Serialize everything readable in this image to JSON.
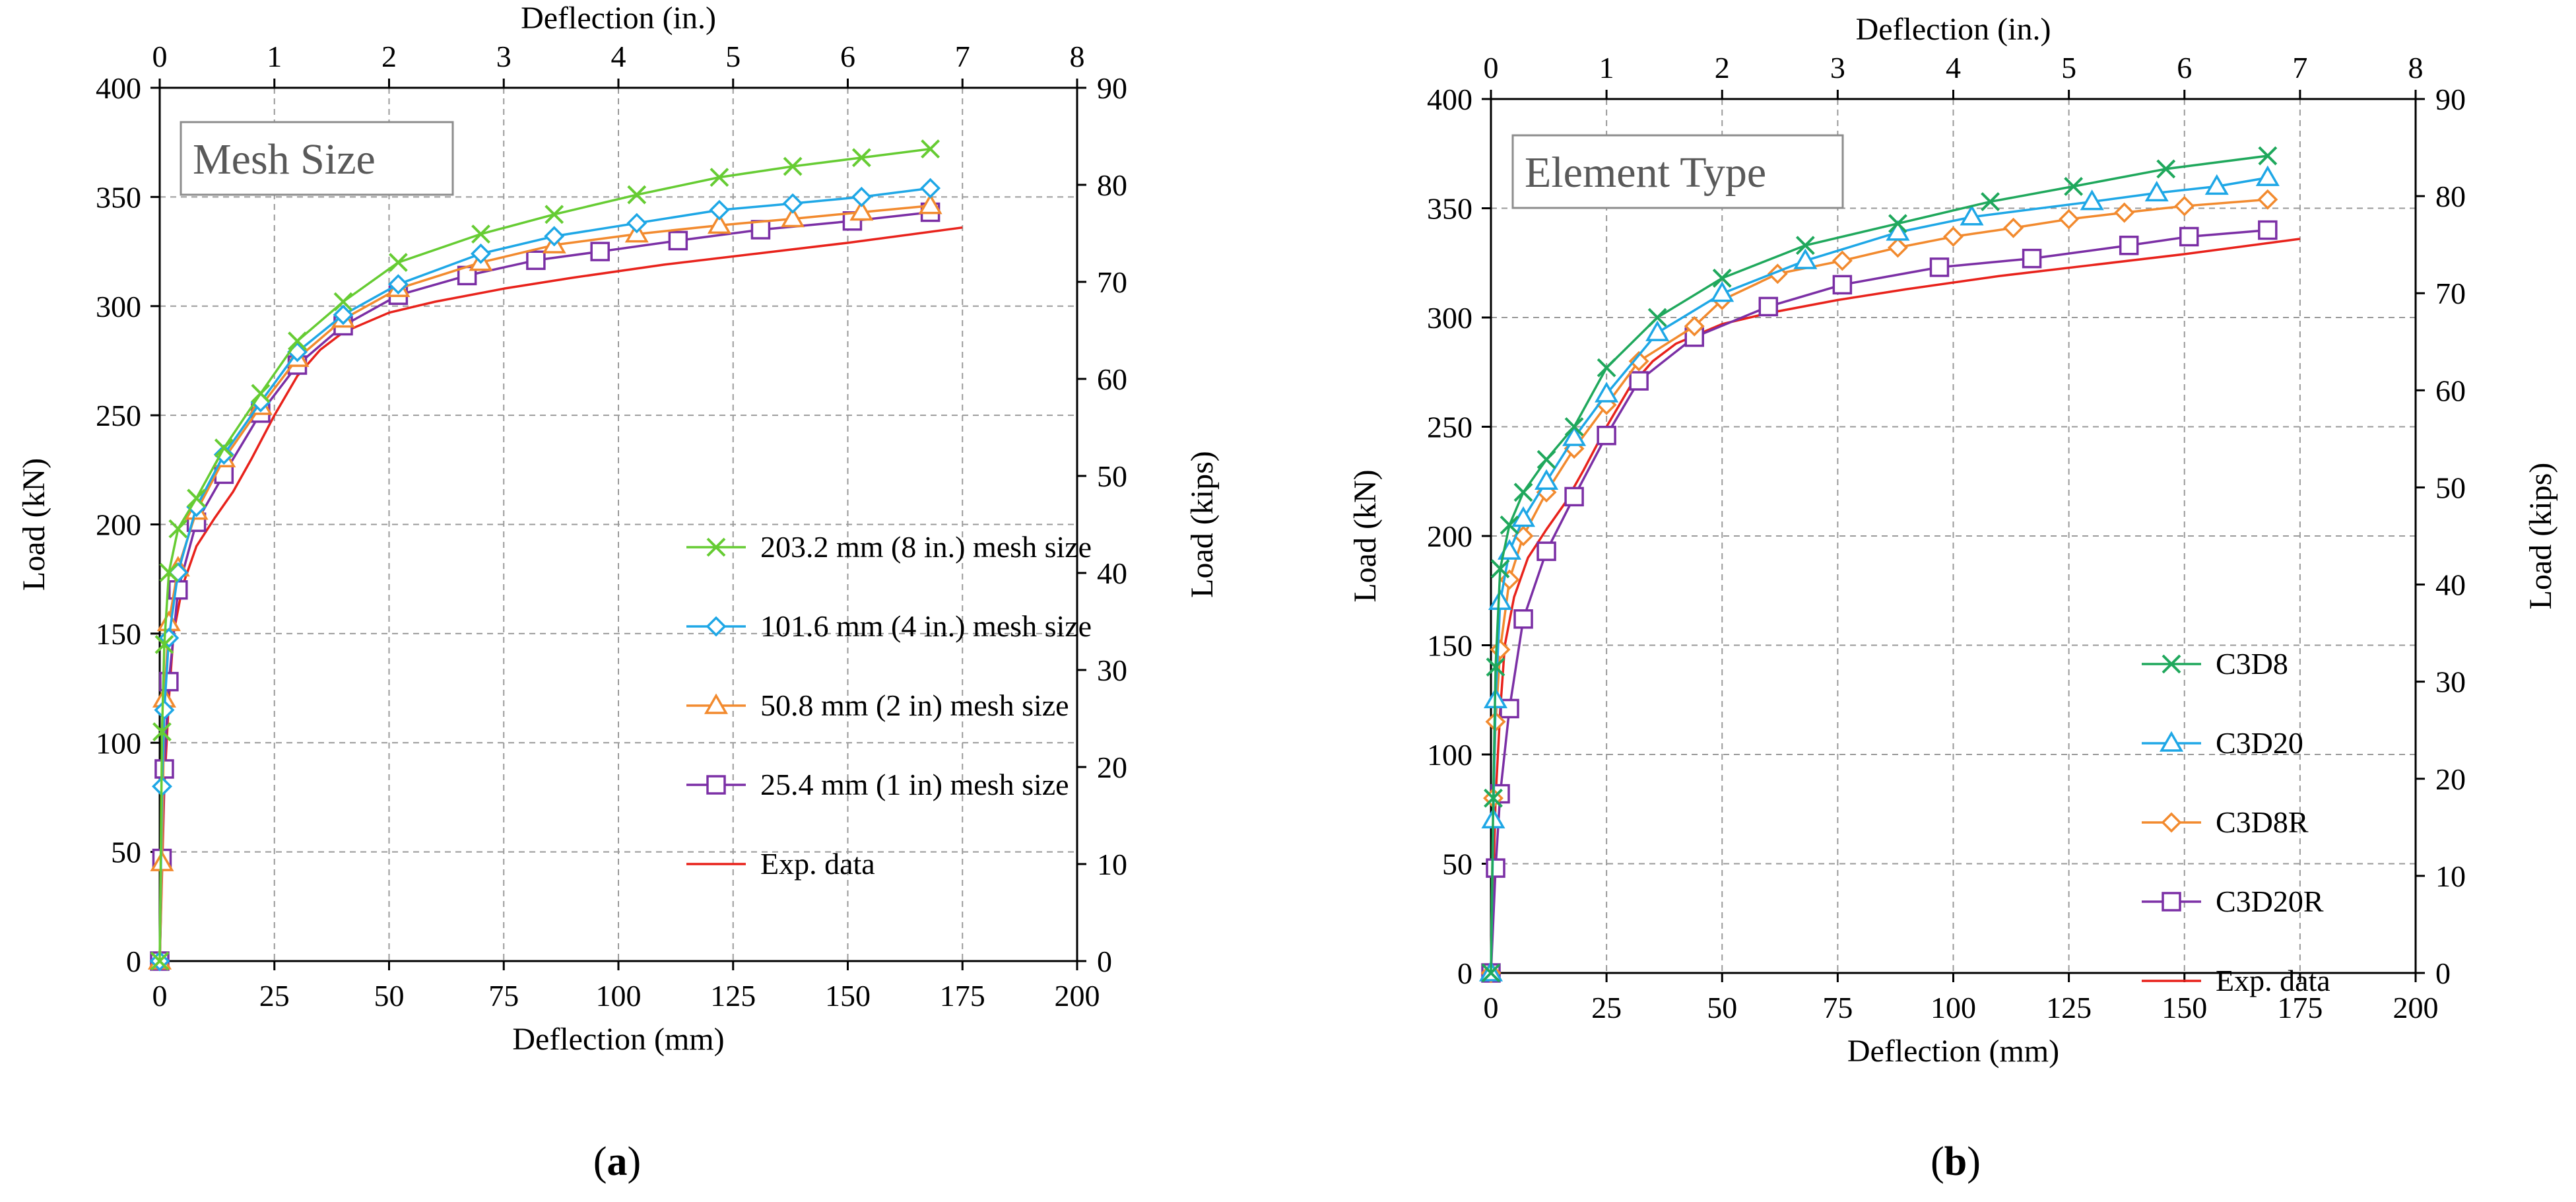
{
  "chart_data": [
    {
      "type": "line",
      "panel_title": "Mesh Size",
      "caption": [
        "(",
        "a",
        ")"
      ],
      "xlabel_bottom": "Deflection (mm)",
      "xlabel_top": "Deflection (in.)",
      "ylabel_left": "Load (kN)",
      "ylabel_right": "Load (kips)",
      "xlim": [
        0,
        200
      ],
      "ylim": [
        0,
        400
      ],
      "xlim_top": [
        0,
        8
      ],
      "ylim_right": [
        0,
        90
      ],
      "x_ticks": [
        "0",
        "25",
        "50",
        "75",
        "100",
        "125",
        "150",
        "175",
        "200"
      ],
      "x_ticks_top": [
        "0",
        "1",
        "2",
        "3",
        "4",
        "5",
        "6",
        "7",
        "8"
      ],
      "y_ticks": [
        "0",
        "50",
        "100",
        "150",
        "200",
        "250",
        "300",
        "350",
        "400"
      ],
      "y_ticks_right": [
        "0",
        "10",
        "20",
        "30",
        "40",
        "50",
        "60",
        "70",
        "80",
        "90"
      ],
      "grid": true,
      "legend_position": "center-right",
      "series": [
        {
          "name": "203.2 mm (8 in.) mesh size",
          "color": "#66cc33",
          "marker": "x",
          "x": [
            0,
            0.5,
            1,
            2,
            4,
            8,
            14,
            22,
            30,
            40,
            52,
            70,
            86,
            104,
            122,
            138,
            153,
            168
          ],
          "y": [
            0,
            105,
            145,
            178,
            198,
            212,
            235,
            260,
            284,
            302,
            320,
            333,
            342,
            351,
            359,
            364,
            368,
            372
          ]
        },
        {
          "name": "101.6 mm (4 in.) mesh size",
          "color": "#1ea7e6",
          "marker": "diamond",
          "x": [
            0,
            0.5,
            1,
            2,
            4,
            8,
            14,
            22,
            30,
            40,
            52,
            70,
            86,
            104,
            122,
            138,
            153,
            168
          ],
          "y": [
            0,
            80,
            115,
            148,
            178,
            208,
            232,
            256,
            279,
            296,
            310,
            324,
            332,
            338,
            344,
            347,
            350,
            354
          ]
        },
        {
          "name": "50.8 mm (2 in) mesh size",
          "color": "#f28a2e",
          "marker": "triangle",
          "x": [
            0,
            0.5,
            1,
            2,
            4,
            8,
            14,
            22,
            30,
            40,
            52,
            70,
            86,
            104,
            122,
            138,
            153,
            168
          ],
          "y": [
            0,
            45,
            120,
            155,
            180,
            206,
            230,
            254,
            276,
            294,
            308,
            320,
            328,
            333,
            337,
            340,
            343,
            346
          ]
        },
        {
          "name": "25.4 mm (1 in) mesh size",
          "color": "#7b2fa5",
          "marker": "square",
          "x": [
            0,
            0.5,
            1,
            2,
            4,
            8,
            14,
            22,
            30,
            40,
            52,
            67,
            82,
            96,
            113,
            131,
            151,
            168
          ],
          "y": [
            0,
            47,
            88,
            128,
            170,
            201,
            223,
            251,
            273,
            291,
            305,
            314,
            321,
            325,
            330,
            335,
            339,
            343
          ]
        },
        {
          "name": "Exp. data",
          "color": "#e8221b",
          "marker": "none",
          "x": [
            0,
            0.5,
            1,
            2,
            3,
            5,
            8,
            12,
            16,
            20,
            25,
            30,
            35,
            40,
            50,
            60,
            75,
            90,
            110,
            130,
            150,
            175
          ],
          "y": [
            0,
            40,
            80,
            120,
            150,
            172,
            190,
            203,
            215,
            230,
            250,
            268,
            280,
            288,
            297,
            302,
            308,
            313,
            319,
            324,
            329,
            336
          ]
        }
      ]
    },
    {
      "type": "line",
      "panel_title": "Element Type",
      "caption": [
        "(",
        "b",
        ")"
      ],
      "xlabel_bottom": "Deflection (mm)",
      "xlabel_top": "Deflection (in.)",
      "ylabel_left": "Load (kN)",
      "ylabel_right": "Load (kips)",
      "xlim": [
        0,
        200
      ],
      "ylim": [
        0,
        400
      ],
      "xlim_top": [
        0,
        8
      ],
      "ylim_right": [
        0,
        90
      ],
      "x_ticks": [
        "0",
        "25",
        "50",
        "75",
        "100",
        "125",
        "150",
        "175",
        "200"
      ],
      "x_ticks_top": [
        "0",
        "1",
        "2",
        "3",
        "4",
        "5",
        "6",
        "7",
        "8"
      ],
      "y_ticks": [
        "0",
        "50",
        "100",
        "150",
        "200",
        "250",
        "300",
        "350",
        "400"
      ],
      "y_ticks_right": [
        "0",
        "10",
        "20",
        "30",
        "40",
        "50",
        "60",
        "70",
        "80",
        "90"
      ],
      "grid": true,
      "legend_position": "center-right",
      "series": [
        {
          "name": "C3D8",
          "color": "#1fa85c",
          "marker": "x",
          "x": [
            0,
            0.5,
            1,
            2,
            4,
            7,
            12,
            18,
            25,
            36,
            50,
            68,
            88,
            108,
            126,
            146,
            168
          ],
          "y": [
            0,
            80,
            140,
            185,
            205,
            220,
            235,
            250,
            277,
            300,
            318,
            333,
            343,
            353,
            360,
            368,
            374
          ]
        },
        {
          "name": "C3D20",
          "color": "#1ea7e6",
          "marker": "triangle",
          "x": [
            0,
            0.5,
            1,
            2,
            4,
            7,
            12,
            18,
            25,
            36,
            50,
            68,
            88,
            104,
            130,
            144,
            157,
            168
          ],
          "y": [
            0,
            70,
            125,
            170,
            193,
            208,
            225,
            245,
            265,
            293,
            311,
            326,
            339,
            346,
            353,
            357,
            360,
            364
          ]
        },
        {
          "name": "C3D8R",
          "color": "#f28a2e",
          "marker": "diamond",
          "x": [
            0,
            0.5,
            1,
            2,
            4,
            7,
            12,
            18,
            25,
            32,
            44,
            50,
            62,
            76,
            88,
            100,
            113,
            125,
            137,
            150,
            168
          ],
          "y": [
            0,
            80,
            115,
            148,
            180,
            200,
            220,
            240,
            260,
            280,
            296,
            308,
            320,
            326,
            332,
            337,
            341,
            345,
            348,
            351,
            354
          ]
        },
        {
          "name": "C3D20R",
          "color": "#7b2fa5",
          "marker": "square",
          "x": [
            0,
            1,
            2,
            4,
            7,
            12,
            18,
            25,
            32,
            44,
            60,
            76,
            97,
            117,
            138,
            151,
            168
          ],
          "y": [
            0,
            48,
            82,
            121,
            162,
            193,
            218,
            246,
            271,
            291,
            305,
            315,
            323,
            327,
            333,
            337,
            340
          ]
        },
        {
          "name": "Exp. data",
          "color": "#e8221b",
          "marker": "none",
          "x": [
            0,
            0.5,
            1,
            2,
            3,
            5,
            8,
            12,
            16,
            20,
            25,
            30,
            35,
            40,
            50,
            60,
            75,
            90,
            110,
            130,
            150,
            175
          ],
          "y": [
            0,
            40,
            80,
            120,
            150,
            172,
            190,
            203,
            215,
            230,
            250,
            268,
            280,
            288,
            297,
            302,
            308,
            313,
            319,
            324,
            329,
            336
          ]
        }
      ]
    }
  ]
}
